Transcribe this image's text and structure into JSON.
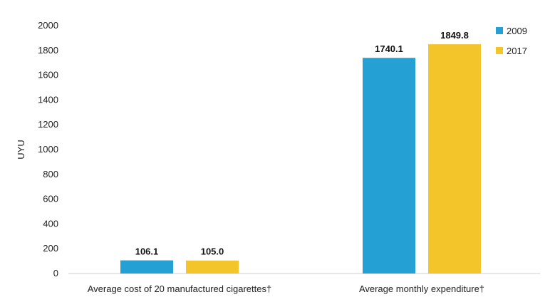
{
  "chart_data": {
    "type": "bar",
    "title": "",
    "xlabel": "",
    "ylabel": "UYU",
    "ylim": [
      0,
      2000
    ],
    "yticks": [
      0,
      200,
      400,
      600,
      800,
      1000,
      1200,
      1400,
      1600,
      1800,
      2000
    ],
    "grid": false,
    "legend_position": "top-right",
    "categories": [
      "Average cost of 20 manufactured cigarettes†",
      "Average monthly expenditure†"
    ],
    "series": [
      {
        "name": "2009",
        "color": "#24a0d4",
        "values": [
          106.1,
          1740.1
        ],
        "labels": [
          "106.1",
          "1740.1"
        ]
      },
      {
        "name": "2017",
        "color": "#f4c52a",
        "values": [
          105.0,
          1849.8
        ],
        "labels": [
          "105.0",
          "1849.8"
        ]
      }
    ]
  }
}
